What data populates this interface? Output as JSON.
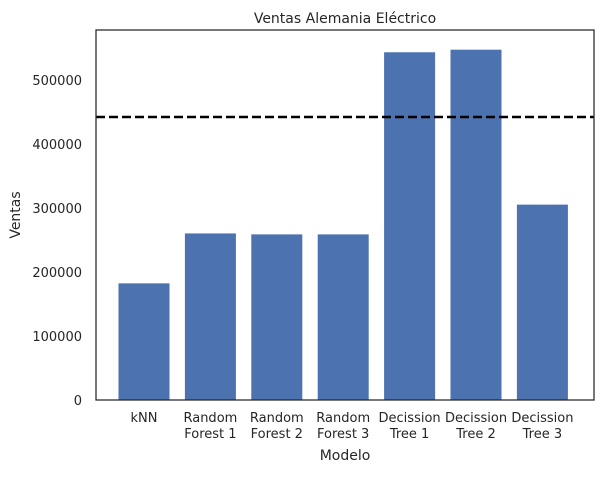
{
  "chart_data": {
    "type": "bar",
    "title": "Ventas Alemania Eléctrico",
    "xlabel": "Modelo",
    "ylabel": "Ventas",
    "categories": [
      [
        "kNN"
      ],
      [
        "Random",
        "Forest 1"
      ],
      [
        "Random",
        "Forest 2"
      ],
      [
        "Random",
        "Forest 3"
      ],
      [
        "Decission",
        "Tree 1"
      ],
      [
        "Decission",
        "Tree 2"
      ],
      [
        "Decission",
        "Tree 3"
      ]
    ],
    "values": [
      183000,
      261000,
      259500,
      259500,
      544000,
      548000,
      306000
    ],
    "reference_line": {
      "value": 442000,
      "style": "dashed",
      "color": "#000000"
    },
    "ylim": [
      0,
      578000
    ],
    "yticks": [
      0,
      100000,
      200000,
      300000,
      400000,
      500000
    ],
    "ytick_labels": [
      "0",
      "100000",
      "200000",
      "300000",
      "400000",
      "500000"
    ],
    "bar_color": "#4c72b0",
    "grid": false,
    "legend": "none"
  }
}
